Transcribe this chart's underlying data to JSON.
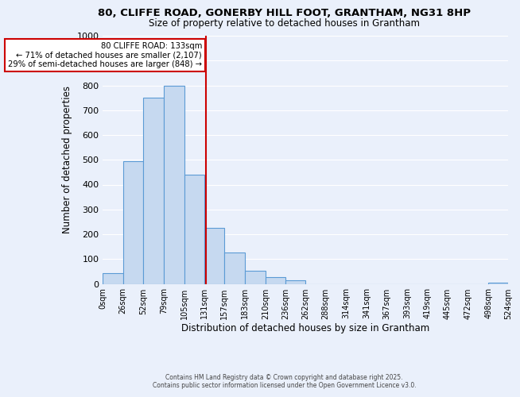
{
  "title_line1": "80, CLIFFE ROAD, GONERBY HILL FOOT, GRANTHAM, NG31 8HP",
  "title_line2": "Size of property relative to detached houses in Grantham",
  "xlabel": "Distribution of detached houses by size in Grantham",
  "ylabel": "Number of detached properties",
  "bar_edges": [
    0,
    26,
    52,
    79,
    105,
    131,
    157,
    183,
    210,
    236,
    262,
    288,
    314,
    341,
    367,
    393,
    419,
    445,
    472,
    498,
    524
  ],
  "bar_heights": [
    42,
    495,
    750,
    800,
    440,
    225,
    128,
    52,
    28,
    15,
    0,
    0,
    0,
    0,
    0,
    0,
    0,
    0,
    0,
    5
  ],
  "bar_color": "#c6d9f0",
  "bar_edge_color": "#5b9bd5",
  "vline_x": 133,
  "vline_color": "#cc0000",
  "annotation_title": "80 CLIFFE ROAD: 133sqm",
  "annotation_line1": "← 71% of detached houses are smaller (2,107)",
  "annotation_line2": "29% of semi-detached houses are larger (848) →",
  "annotation_box_edge": "#cc0000",
  "ylim": [
    0,
    1000
  ],
  "xlim": [
    0,
    524
  ],
  "xtick_labels": [
    "0sqm",
    "26sqm",
    "52sqm",
    "79sqm",
    "105sqm",
    "131sqm",
    "157sqm",
    "183sqm",
    "210sqm",
    "236sqm",
    "262sqm",
    "288sqm",
    "314sqm",
    "341sqm",
    "367sqm",
    "393sqm",
    "419sqm",
    "445sqm",
    "472sqm",
    "498sqm",
    "524sqm"
  ],
  "xtick_positions": [
    0,
    26,
    52,
    79,
    105,
    131,
    157,
    183,
    210,
    236,
    262,
    288,
    314,
    341,
    367,
    393,
    419,
    445,
    472,
    498,
    524
  ],
  "footer_line1": "Contains HM Land Registry data © Crown copyright and database right 2025.",
  "footer_line2": "Contains public sector information licensed under the Open Government Licence v3.0.",
  "bg_color": "#eaf0fb",
  "plot_bg_color": "#eaf0fb",
  "grid_color": "#ffffff"
}
